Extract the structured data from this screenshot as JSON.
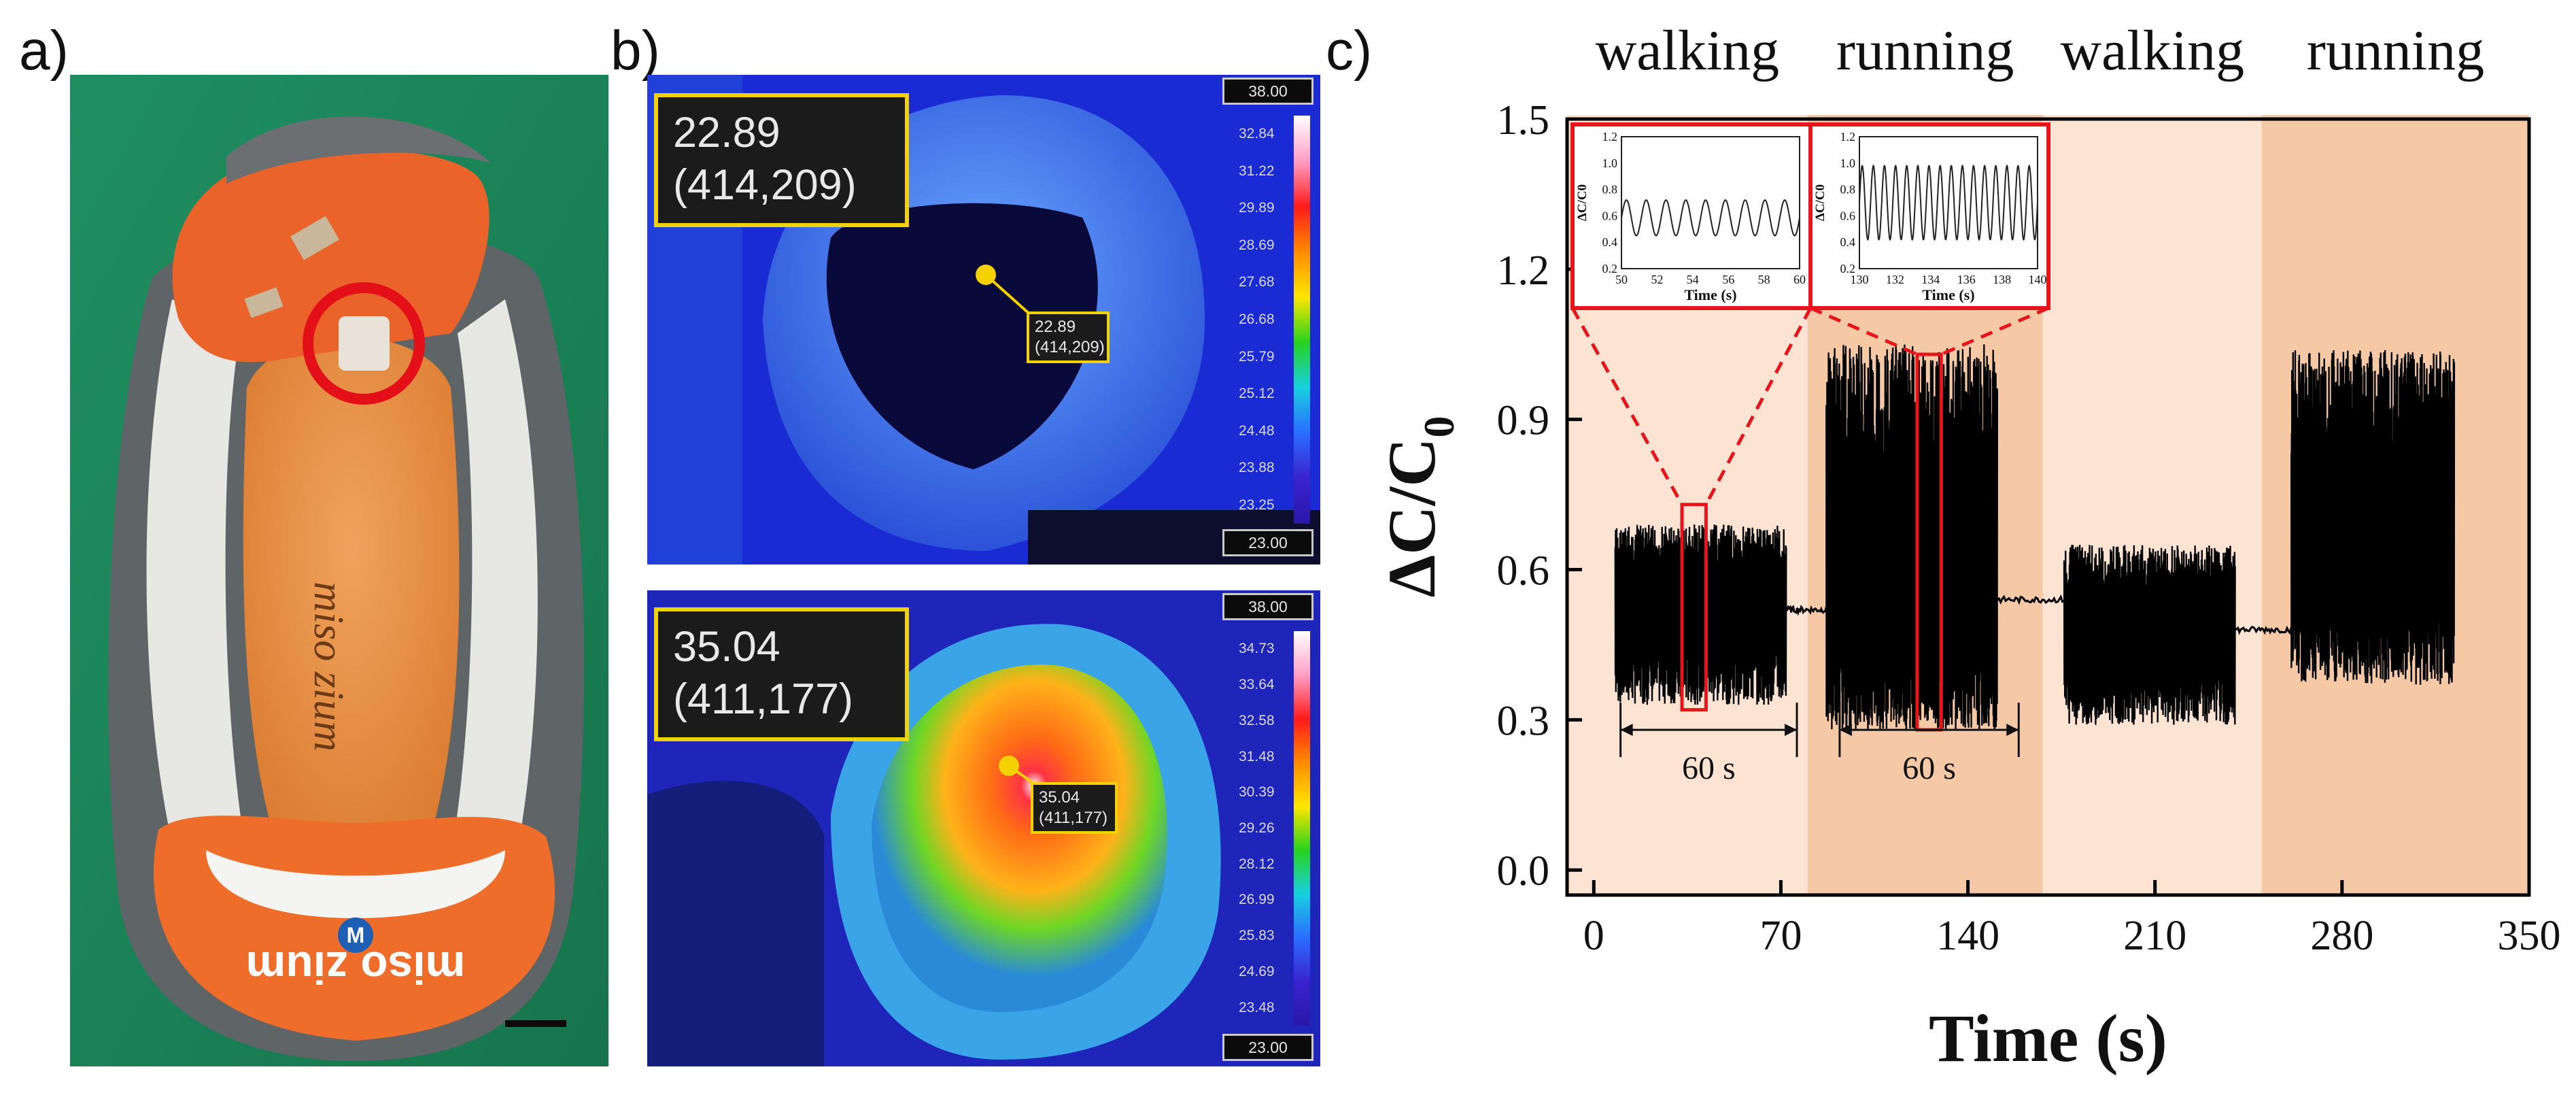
{
  "figure": {
    "panel_a_label": "a)",
    "panel_b_label": "b)",
    "panel_c_label": "c)",
    "colors": {
      "walking_band": "#fde3d2",
      "running_band": "#f6c9a6",
      "signal": "#000000",
      "highlight": "#e8141c",
      "readout_border": "#f1d20a"
    }
  },
  "panel_a": {
    "insole_text": "miso zium",
    "heel_text": "miso zium",
    "brand_letter": "M"
  },
  "panel_b": {
    "top": {
      "readout_value": "22.89",
      "readout_coord": "(414,209)",
      "marker_value": "22.89",
      "marker_coord": "(414,209)",
      "scale_max": "38.00",
      "scale_min": "23.00",
      "scale_ticks": [
        "32.84",
        "31.22",
        "29.89",
        "28.69",
        "27.68",
        "26.68",
        "25.79",
        "25.12",
        "24.48",
        "23.88",
        "23.25"
      ]
    },
    "bottom": {
      "readout_value": "35.04",
      "readout_coord": "(411,177)",
      "marker_value": "35.04",
      "marker_coord": "(411,177)",
      "scale_max": "38.00",
      "scale_min": "23.00",
      "scale_ticks": [
        "34.73",
        "33.64",
        "32.58",
        "31.48",
        "30.39",
        "29.26",
        "28.12",
        "26.99",
        "25.83",
        "24.69",
        "23.48"
      ]
    }
  },
  "chart_data": {
    "type": "line",
    "title": "",
    "xlabel": "Time (s)",
    "ylabel": "ΔC/C0",
    "ylabel_main": "ΔC/C",
    "ylabel_sub": "0",
    "xlim": [
      -10,
      350
    ],
    "ylim": [
      -0.05,
      1.5
    ],
    "xticks": [
      0,
      70,
      140,
      210,
      280,
      350
    ],
    "yticks": [
      0.0,
      0.3,
      0.6,
      0.9,
      1.2,
      1.5
    ],
    "ytick_labels": [
      "0.0",
      "0.3",
      "0.6",
      "0.9",
      "1.2",
      "1.5"
    ],
    "phases": [
      {
        "label": "walking",
        "start": -10,
        "end": 80,
        "kind": "walking"
      },
      {
        "label": "running",
        "start": 80,
        "end": 168,
        "kind": "running"
      },
      {
        "label": "walking",
        "start": 168,
        "end": 250,
        "kind": "walking"
      },
      {
        "label": "running",
        "start": 250,
        "end": 350,
        "kind": "running"
      }
    ],
    "segments": [
      {
        "activity": "walking",
        "t_start": 8,
        "t_end": 72,
        "low": 0.33,
        "high": 0.69,
        "baseline": 0.52
      },
      {
        "activity": "rest",
        "t_start": 72,
        "t_end": 87,
        "level": 0.52
      },
      {
        "activity": "running",
        "t_start": 87,
        "t_end": 151,
        "low": 0.28,
        "high": 1.05,
        "baseline": 0.55
      },
      {
        "activity": "rest",
        "t_start": 151,
        "t_end": 176,
        "level": 0.54
      },
      {
        "activity": "walking",
        "t_start": 176,
        "t_end": 240,
        "low": 0.29,
        "high": 0.65,
        "baseline": 0.47
      },
      {
        "activity": "rest",
        "t_start": 240,
        "t_end": 261,
        "level": 0.48
      },
      {
        "activity": "running",
        "t_start": 261,
        "t_end": 322,
        "low": 0.37,
        "high": 1.04,
        "baseline": 0.64
      }
    ],
    "zoom_windows": [
      {
        "t_start": 33,
        "t_end": 42,
        "y_low": 0.32,
        "y_high": 0.73
      },
      {
        "t_start": 121,
        "t_end": 130,
        "y_low": 0.28,
        "y_high": 1.03
      }
    ],
    "duration_annotations": [
      {
        "t_start": 10,
        "t_end": 76,
        "y": 0.28,
        "label": "60 s"
      },
      {
        "t_start": 92,
        "t_end": 159,
        "y": 0.28,
        "label": "60 s"
      }
    ],
    "insets": [
      {
        "xlabel": "Time (s)",
        "ylabel": "ΔC/C0",
        "xlim": [
          50,
          60
        ],
        "ylim": [
          0.2,
          1.2
        ],
        "xticks": [
          50,
          52,
          54,
          56,
          58,
          60
        ],
        "yticks": [
          0.2,
          0.4,
          0.6,
          0.8,
          1.0,
          1.2
        ],
        "ytick_labels": [
          "0.2",
          "0.4",
          "0.6",
          "0.8",
          "1.0",
          "1.2"
        ],
        "cycles": 9,
        "low": 0.45,
        "high": 0.72
      },
      {
        "xlabel": "Time (s)",
        "ylabel": "ΔC/C0",
        "xlim": [
          130,
          140
        ],
        "ylim": [
          0.2,
          1.2
        ],
        "xticks": [
          130,
          132,
          134,
          136,
          138,
          140
        ],
        "yticks": [
          0.2,
          0.4,
          0.6,
          0.8,
          1.0,
          1.2
        ],
        "ytick_labels": [
          "0.2",
          "0.4",
          "0.6",
          "0.8",
          "1.0",
          "1.2"
        ],
        "cycles": 16,
        "low": 0.42,
        "high": 0.98
      }
    ]
  }
}
